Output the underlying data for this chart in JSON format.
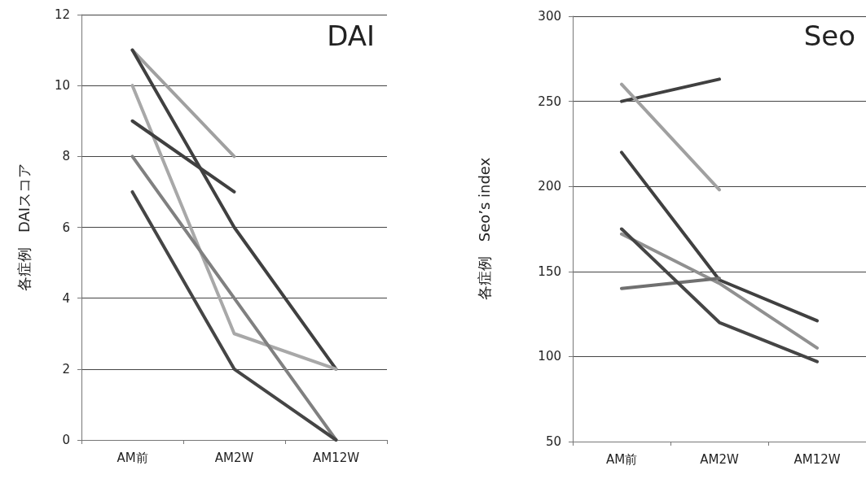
{
  "chart_data": [
    {
      "type": "line",
      "title": "DAI",
      "ylabel": "各症例　DAIスコア",
      "categories": [
        "AM前",
        "AM2W",
        "AM12W"
      ],
      "ylim": [
        0,
        12
      ],
      "yticks": [
        0,
        2,
        4,
        6,
        8,
        10,
        12
      ],
      "grid": "y",
      "marker": "none",
      "line_style": "solid",
      "series": [
        {
          "color": "#a0a0a0",
          "values": [
            11,
            8,
            null
          ]
        },
        {
          "color": "#404040",
          "values": [
            11,
            6,
            2
          ]
        },
        {
          "color": "#a8a8a8",
          "values": [
            10,
            3,
            2
          ]
        },
        {
          "color": "#404040",
          "values": [
            9,
            7,
            null
          ]
        },
        {
          "color": "#808080",
          "values": [
            8,
            4,
            0
          ]
        },
        {
          "color": "#454545",
          "values": [
            7,
            2,
            0
          ]
        }
      ]
    },
    {
      "type": "line",
      "title": "Seo",
      "ylabel": "各症例　Seo’s index",
      "categories": [
        "AM前",
        "AM2W",
        "AM12W"
      ],
      "ylim": [
        50,
        300
      ],
      "yticks": [
        50,
        100,
        150,
        200,
        250,
        300
      ],
      "grid": "y",
      "marker": "none",
      "line_style": "solid",
      "series": [
        {
          "color": "#404040",
          "values": [
            250,
            263,
            null
          ]
        },
        {
          "color": "#a0a0a0",
          "values": [
            260,
            198,
            null
          ]
        },
        {
          "color": "#404040",
          "values": [
            220,
            145,
            121
          ]
        },
        {
          "color": "#909090",
          "values": [
            172,
            143,
            105
          ]
        },
        {
          "color": "#707070",
          "values": [
            140,
            146,
            null
          ]
        },
        {
          "color": "#454545",
          "values": [
            175,
            120,
            97
          ]
        }
      ]
    }
  ]
}
